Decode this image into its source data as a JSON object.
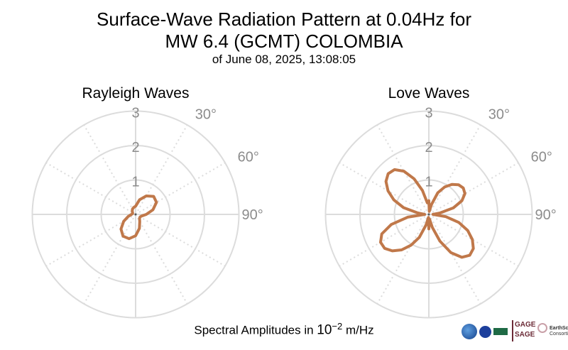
{
  "title_line1": "Surface-Wave Radiation Pattern at 0.04Hz for",
  "title_line2": "MW 6.4 (GCMT) COLOMBIA",
  "subtitle": "of June 08, 2025, 13:08:05",
  "footer": {
    "prefix": "Spectral Amplitudes in ",
    "base": "10",
    "exponent": "−2",
    "unit": " m/Hz"
  },
  "logos": {
    "gage": "GAGE",
    "sage": "SAGE",
    "earthscope_1": "EarthScope",
    "earthscope_2": "Consortium"
  },
  "colors": {
    "pattern": "#c0784a",
    "grid": "#dcdcdc",
    "tick_text": "#8c8c8c"
  },
  "chart_data": [
    {
      "type": "polar-line",
      "title": "Rayleigh Waves",
      "theta_unit": "degrees clockwise from north",
      "r_ticks": [
        "1",
        "2",
        "3"
      ],
      "theta_tick_labels": [
        "30°",
        "60°",
        "90°"
      ],
      "r_range": [
        0,
        3
      ],
      "series": [
        {
          "theta": [
            0,
            15,
            30,
            45,
            60,
            75,
            90,
            105,
            120,
            135,
            150,
            165,
            180,
            195,
            210,
            225,
            240,
            255,
            270,
            285,
            300,
            315,
            330,
            345
          ],
          "r": [
            0.24,
            0.44,
            0.62,
            0.74,
            0.7,
            0.52,
            0.31,
            0.18,
            0.15,
            0.16,
            0.24,
            0.42,
            0.62,
            0.73,
            0.73,
            0.6,
            0.4,
            0.22,
            0.12,
            0.09,
            0.1,
            0.14,
            0.18,
            0.21
          ]
        }
      ]
    },
    {
      "type": "polar-line",
      "title": "Love Waves",
      "theta_unit": "degrees clockwise from north",
      "r_ticks": [
        "1",
        "2",
        "3"
      ],
      "theta_tick_labels": [
        "30°",
        "60°",
        "90°"
      ],
      "r_range": [
        0,
        3
      ],
      "series": [
        {
          "theta": [
            0,
            7.5,
            15,
            22.5,
            30,
            37.5,
            45,
            52.5,
            60,
            67.5,
            75,
            82.5,
            90,
            97.5,
            105,
            112.5,
            120,
            127.5,
            135,
            142.5,
            150,
            157.5,
            165,
            172.5,
            180,
            187.5,
            195,
            202.5,
            210,
            217.5,
            225,
            232.5,
            240,
            247.5,
            255,
            262.5,
            270,
            277.5,
            285,
            292.5,
            300,
            307.5,
            315,
            322.5,
            330,
            337.5,
            345,
            352.5
          ],
          "r": [
            0.4,
            0.09,
            0.3,
            0.68,
            0.92,
            1.1,
            1.22,
            1.26,
            1.21,
            1.04,
            0.74,
            0.33,
            0.12,
            0.5,
            0.9,
            1.22,
            1.46,
            1.63,
            1.68,
            1.57,
            1.28,
            0.84,
            0.39,
            0.13,
            0.42,
            0.09,
            0.32,
            0.72,
            1.03,
            1.3,
            1.5,
            1.62,
            1.62,
            1.48,
            1.13,
            0.62,
            0.12,
            0.32,
            0.76,
            1.1,
            1.37,
            1.57,
            1.67,
            1.64,
            1.45,
            1.12,
            0.72,
            0.34
          ]
        }
      ]
    }
  ]
}
